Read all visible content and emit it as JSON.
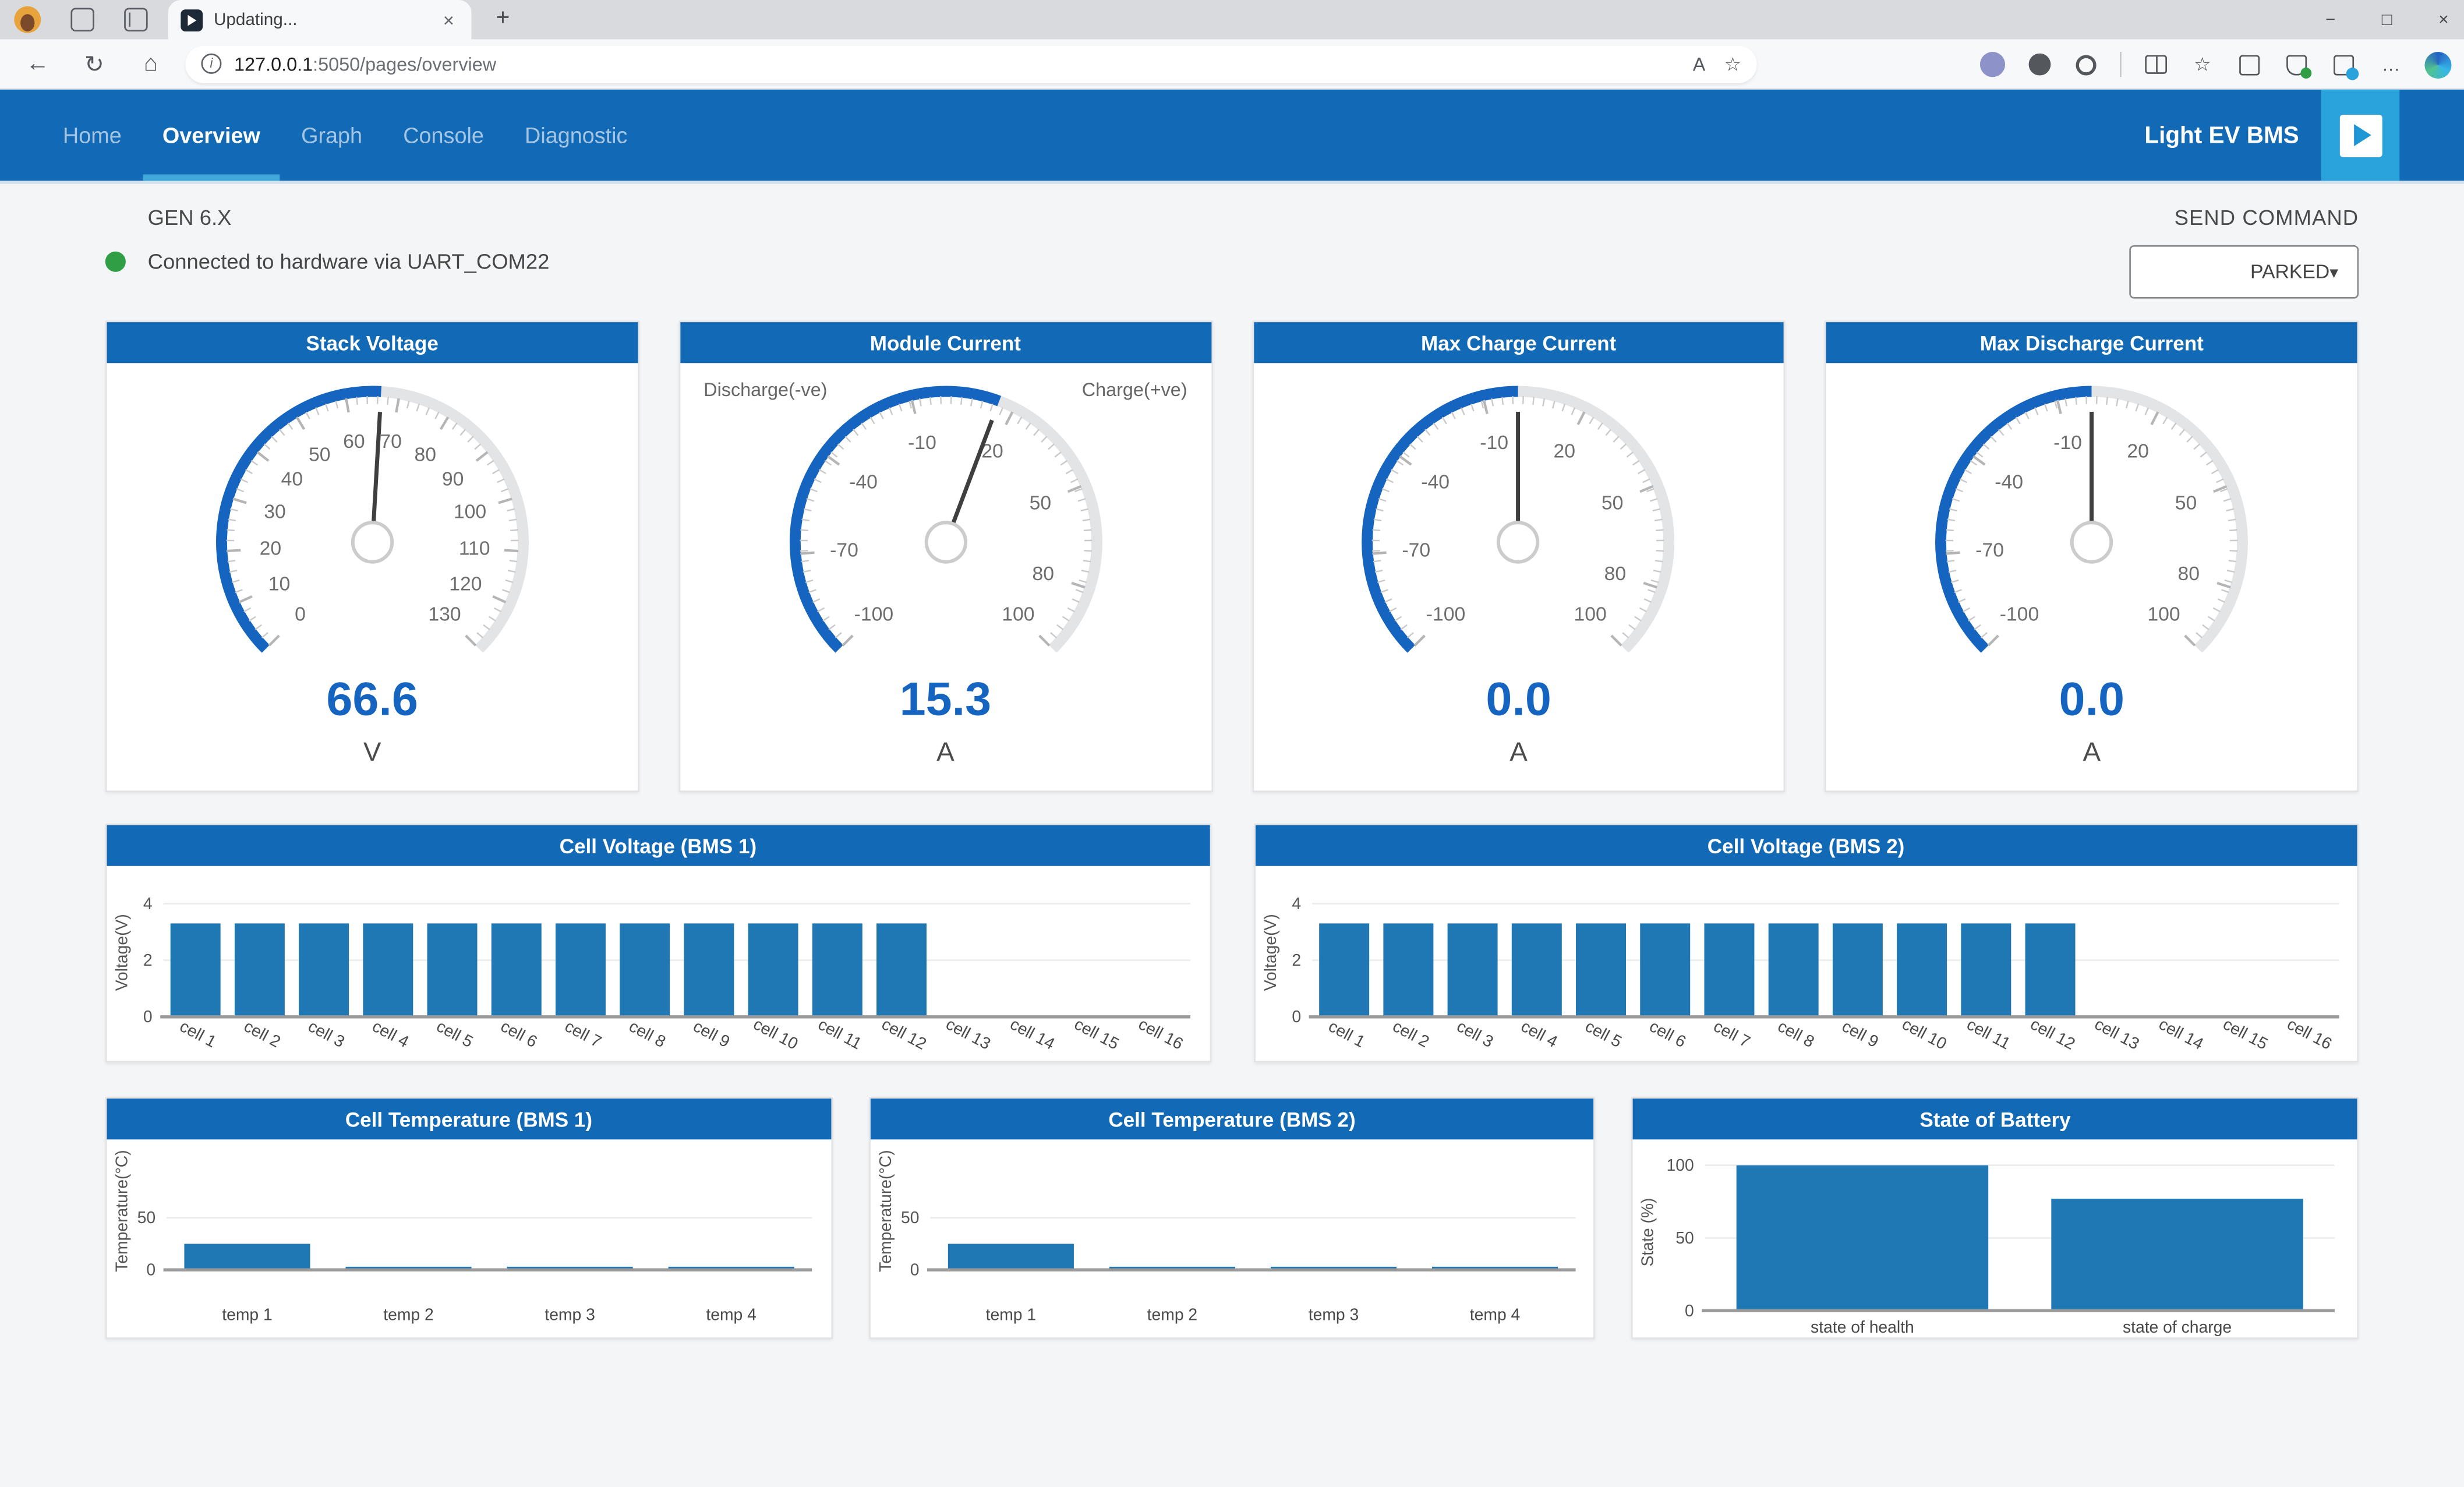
{
  "browser": {
    "tab": {
      "title": "Updating...",
      "close_glyph": "×"
    },
    "new_tab_glyph": "+",
    "window_controls": {
      "minimize": "−",
      "maximize": "□",
      "close": "×"
    },
    "toolbar": {
      "back_glyph": "←",
      "refresh_glyph": "↻",
      "home_glyph": "⌂",
      "info_glyph": "i",
      "url_host": "127.0.0.1",
      "url_rest": ":5050/pages/overview",
      "reader_glyph": "A",
      "favorite_glyph": "☆",
      "ellipsis_glyph": "…"
    }
  },
  "nav": {
    "items": [
      {
        "label": "Home"
      },
      {
        "label": "Overview"
      },
      {
        "label": "Graph"
      },
      {
        "label": "Console"
      },
      {
        "label": "Diagnostic"
      }
    ],
    "active": "Overview",
    "brand": "Light EV BMS"
  },
  "status": {
    "generation": "GEN 6.X",
    "connection": "Connected to hardware via UART_COM22"
  },
  "send_command": {
    "label": "SEND COMMAND",
    "value": "PARKED",
    "caret": "▾"
  },
  "colors": {
    "accent": "#1269b5",
    "accent_light": "#2aa3dc",
    "bar": "#1f77b4",
    "gauge_fill": "#1565c0",
    "status_green": "#2f9e44"
  },
  "chart_data": [
    {
      "type": "gauge",
      "title": "Stack Voltage",
      "min": 0,
      "max": 130,
      "labels": [
        0,
        10,
        20,
        30,
        40,
        50,
        60,
        70,
        80,
        90,
        100,
        110,
        120,
        130
      ],
      "value": 66.6,
      "display": "66.6",
      "unit": "V"
    },
    {
      "type": "gauge",
      "title": "Module Current",
      "min": -100,
      "max": 100,
      "labels": [
        -100,
        -70,
        -40,
        -10,
        20,
        50,
        80,
        100
      ],
      "value": 15.3,
      "display": "15.3",
      "unit": "A",
      "corner_left": "Discharge(-ve)",
      "corner_right": "Charge(+ve)"
    },
    {
      "type": "gauge",
      "title": "Max Charge Current",
      "min": -100,
      "max": 100,
      "labels": [
        -100,
        -70,
        -40,
        -10,
        20,
        50,
        80,
        100
      ],
      "value": 0.0,
      "display": "0.0",
      "unit": "A"
    },
    {
      "type": "gauge",
      "title": "Max Discharge Current",
      "min": -100,
      "max": 100,
      "labels": [
        -100,
        -70,
        -40,
        -10,
        20,
        50,
        80,
        100
      ],
      "value": 0.0,
      "display": "0.0",
      "unit": "A"
    },
    {
      "type": "bar",
      "title": "Cell Voltage (BMS 1)",
      "categories": [
        "cell 1",
        "cell 2",
        "cell 3",
        "cell 4",
        "cell 5",
        "cell 6",
        "cell 7",
        "cell 8",
        "cell 9",
        "cell 10",
        "cell 11",
        "cell 12",
        "cell 13",
        "cell 14",
        "cell 15",
        "cell 16"
      ],
      "values": [
        3.3,
        3.3,
        3.3,
        3.3,
        3.3,
        3.3,
        3.3,
        3.3,
        3.3,
        3.3,
        3.3,
        3.3,
        0,
        0,
        0,
        0
      ],
      "ylabel": "Voltage(V)",
      "yticks": [
        0,
        2,
        4
      ],
      "ylim": [
        0,
        4.55
      ],
      "grid": true
    },
    {
      "type": "bar",
      "title": "Cell Voltage (BMS 2)",
      "categories": [
        "cell 1",
        "cell 2",
        "cell 3",
        "cell 4",
        "cell 5",
        "cell 6",
        "cell 7",
        "cell 8",
        "cell 9",
        "cell 10",
        "cell 11",
        "cell 12",
        "cell 13",
        "cell 14",
        "cell 15",
        "cell 16"
      ],
      "values": [
        3.3,
        3.3,
        3.3,
        3.3,
        3.3,
        3.3,
        3.3,
        3.3,
        3.3,
        3.3,
        3.3,
        3.3,
        0,
        0,
        0,
        0
      ],
      "ylabel": "Voltage(V)",
      "yticks": [
        0,
        2,
        4
      ],
      "ylim": [
        0,
        4.55
      ],
      "grid": true
    },
    {
      "type": "bar",
      "title": "Cell Temperature (BMS 1)",
      "categories": [
        "temp 1",
        "temp 2",
        "temp 3",
        "temp 4"
      ],
      "values": [
        25,
        3,
        3,
        3
      ],
      "ylabel": "Temperature(°C)",
      "yticks": [
        0,
        50
      ],
      "ylim": [
        0,
        113
      ],
      "grid": true
    },
    {
      "type": "bar",
      "title": "Cell Temperature (BMS 2)",
      "categories": [
        "temp 1",
        "temp 2",
        "temp 3",
        "temp 4"
      ],
      "values": [
        25,
        3,
        3,
        3
      ],
      "ylabel": "Temperature(°C)",
      "yticks": [
        0,
        50
      ],
      "ylim": [
        0,
        113
      ],
      "grid": true
    },
    {
      "type": "bar",
      "title": "State of Battery",
      "categories": [
        "state of health",
        "state of charge"
      ],
      "values": [
        100,
        77
      ],
      "ylabel": "State (%)",
      "yticks": [
        0,
        50,
        100
      ],
      "ylim": [
        0,
        108
      ],
      "grid": true
    }
  ]
}
